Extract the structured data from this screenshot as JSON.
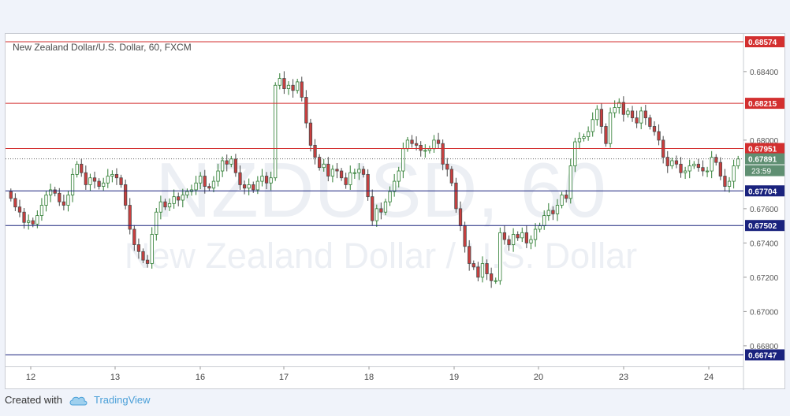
{
  "chart_data": {
    "type": "candlestick",
    "title": "New Zealand Dollar/U.S. Dollar, 60, FXCM",
    "watermark_symbol": "NZDUSD, 60",
    "watermark_name": "New Zealand Dollar / U.S. Dollar",
    "x_labels": [
      "12",
      "13",
      "16",
      "17",
      "18",
      "19",
      "20",
      "23",
      "24"
    ],
    "y_ticks": [
      "0.68400",
      "0.68000",
      "0.67600",
      "0.67400",
      "0.67200",
      "0.67000",
      "0.66800"
    ],
    "y_tick_values": [
      0.684,
      0.68,
      0.676,
      0.674,
      0.672,
      0.67,
      0.668
    ],
    "ylim": [
      0.6668,
      0.6862
    ],
    "current_price": {
      "label": "0.67891",
      "value": 0.67891,
      "countdown": "23:59"
    },
    "horizontal_levels": [
      {
        "label": "0.68574",
        "value": 0.68574,
        "color": "#d32f2f"
      },
      {
        "label": "0.68215",
        "value": 0.68215,
        "color": "#d32f2f"
      },
      {
        "label": "0.67951",
        "value": 0.67951,
        "color": "#d32f2f"
      },
      {
        "label": "0.67704",
        "value": 0.67704,
        "color": "#1a237e"
      },
      {
        "label": "0.67502",
        "value": 0.67502,
        "color": "#1a237e"
      },
      {
        "label": "0.66747",
        "value": 0.66747,
        "color": "#1a237e"
      }
    ],
    "up_color": "#ffffff",
    "down_color": "#ca3f3f",
    "up_border": "#2e7d32",
    "down_border": "#4a4a4a",
    "series_close": [
      0.6766,
      0.6761,
      0.6758,
      0.6752,
      0.6753,
      0.6751,
      0.6756,
      0.6762,
      0.6768,
      0.6771,
      0.6769,
      0.6764,
      0.6762,
      0.6768,
      0.678,
      0.6786,
      0.6781,
      0.6774,
      0.6778,
      0.6776,
      0.6773,
      0.6775,
      0.6779,
      0.678,
      0.6778,
      0.6774,
      0.6762,
      0.6748,
      0.6739,
      0.6735,
      0.673,
      0.6728,
      0.6745,
      0.6758,
      0.6764,
      0.6761,
      0.6763,
      0.6767,
      0.6765,
      0.6768,
      0.677,
      0.6771,
      0.6775,
      0.6779,
      0.6773,
      0.6772,
      0.6776,
      0.6782,
      0.6788,
      0.6786,
      0.6789,
      0.6781,
      0.6774,
      0.6772,
      0.6774,
      0.6771,
      0.6776,
      0.6779,
      0.6775,
      0.6778,
      0.6832,
      0.6836,
      0.683,
      0.6832,
      0.6829,
      0.6834,
      0.6825,
      0.681,
      0.6797,
      0.679,
      0.6784,
      0.6786,
      0.6779,
      0.6783,
      0.6782,
      0.6778,
      0.6774,
      0.6781,
      0.6781,
      0.6783,
      0.678,
      0.6767,
      0.6753,
      0.676,
      0.6758,
      0.6764,
      0.677,
      0.6776,
      0.6782,
      0.6795,
      0.68,
      0.6798,
      0.6797,
      0.6794,
      0.6794,
      0.6795,
      0.68,
      0.6798,
      0.6786,
      0.6783,
      0.6775,
      0.676,
      0.675,
      0.6738,
      0.6728,
      0.6726,
      0.672,
      0.6728,
      0.6722,
      0.6718,
      0.6718,
      0.6746,
      0.6742,
      0.6739,
      0.6745,
      0.6743,
      0.6746,
      0.674,
      0.6742,
      0.6748,
      0.675,
      0.6756,
      0.6759,
      0.6757,
      0.6762,
      0.6768,
      0.6766,
      0.6785,
      0.6799,
      0.6801,
      0.6802,
      0.6805,
      0.6812,
      0.6818,
      0.6808,
      0.6798,
      0.6816,
      0.6819,
      0.6822,
      0.6815,
      0.6817,
      0.6813,
      0.681,
      0.6817,
      0.6813,
      0.6808,
      0.6805,
      0.68,
      0.679,
      0.6785,
      0.6788,
      0.6786,
      0.6781,
      0.6782,
      0.6785,
      0.6786,
      0.6784,
      0.6782,
      0.6782,
      0.679,
      0.6787,
      0.6779,
      0.6773,
      0.6776,
      0.6785,
      0.6789
    ]
  }
}
